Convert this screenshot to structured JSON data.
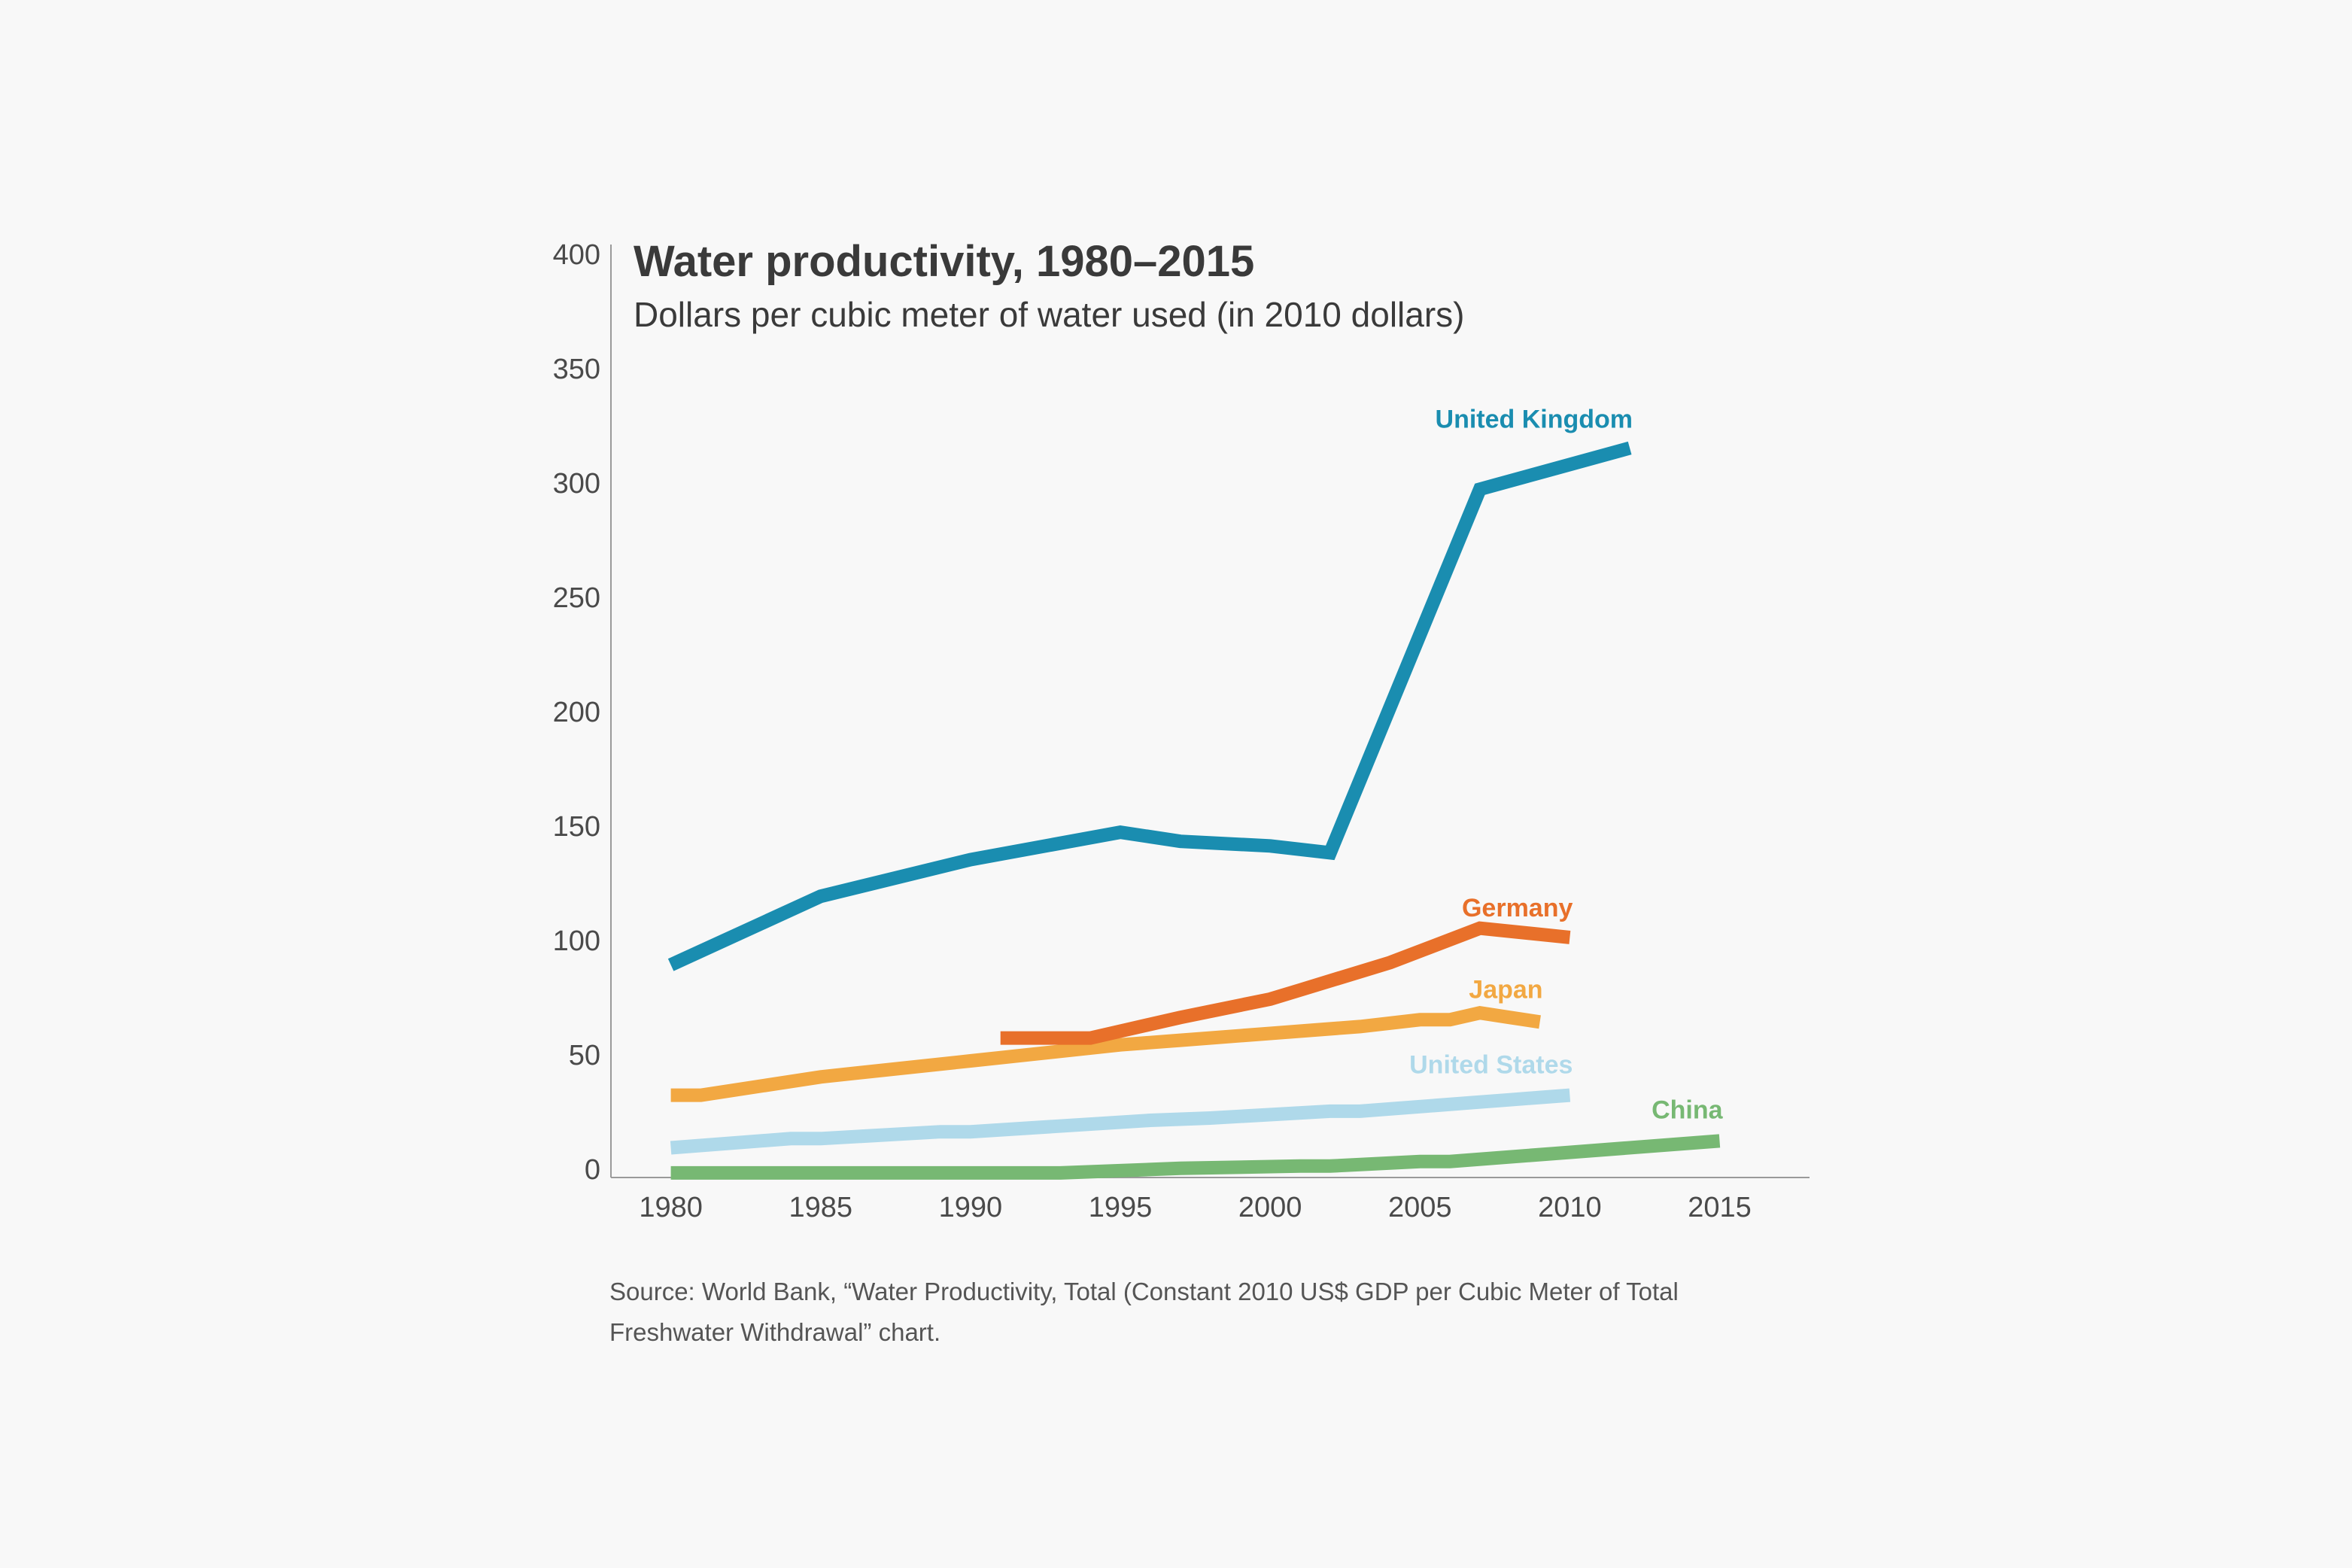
{
  "source": "Source: World Bank, “Water Productivity, Total (Constant 2010 US$ GDP per Cubic Meter of Total Freshwater Withdrawal” chart.",
  "chart_data": {
    "type": "line",
    "title": "Water productivity, 1980–2015",
    "subtitle": "Dollars per cubic meter of water used (in 2010 dollars)",
    "xlabel": "",
    "ylabel": "",
    "xlim": [
      1978,
      2018
    ],
    "ylim": [
      -4,
      404
    ],
    "x_ticks": [
      "1980",
      "1985",
      "1990",
      "1995",
      "2000",
      "2005",
      "2010",
      "2015"
    ],
    "y_ticks": [
      "0",
      "50",
      "100",
      "150",
      "200",
      "250",
      "300",
      "350",
      "400"
    ],
    "grid": false,
    "legend": "direct labels at line ends",
    "series": [
      {
        "name": "United Kingdom",
        "color": "#1a8db0",
        "x": [
          1980,
          1985,
          1990,
          1995,
          1997,
          2000,
          2002,
          2007,
          2012
        ],
        "y": [
          89,
          119,
          135,
          147,
          143,
          141,
          138,
          297,
          315
        ]
      },
      {
        "name": "Germany",
        "color": "#e8702a",
        "x": [
          1991,
          1994,
          1995,
          1997,
          2000,
          2001,
          2004,
          2007,
          2010
        ],
        "y": [
          57,
          57,
          60,
          66,
          74,
          78,
          90,
          105,
          101
        ]
      },
      {
        "name": "Japan",
        "color": "#f2a842",
        "x": [
          1980,
          1981,
          1985,
          1990,
          1995,
          1997,
          2000,
          2003,
          2005,
          2006,
          2007,
          2008,
          2009
        ],
        "y": [
          32,
          32,
          40,
          47,
          54,
          56,
          59,
          62,
          65,
          65,
          68,
          66,
          64
        ]
      },
      {
        "name": "United States",
        "color": "#afd9ea",
        "x": [
          1980,
          1984,
          1985,
          1989,
          1990,
          1996,
          1998,
          2002,
          2003,
          2007,
          2008,
          2009,
          2010
        ],
        "y": [
          9,
          13,
          13,
          16,
          16,
          21,
          22,
          25,
          25,
          29,
          30,
          31,
          32
        ]
      },
      {
        "name": "China",
        "color": "#77b873",
        "x": [
          1980,
          1993,
          1997,
          2001,
          2002,
          2005,
          2006,
          2015
        ],
        "y": [
          -2,
          -2,
          0,
          1,
          1,
          3,
          3,
          12
        ]
      }
    ]
  }
}
